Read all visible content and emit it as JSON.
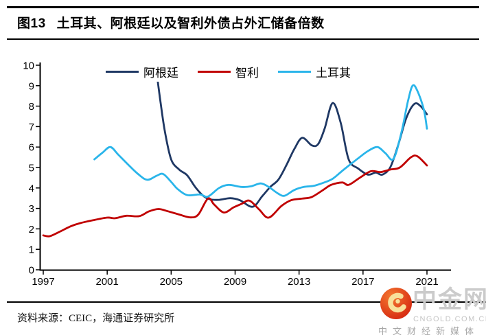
{
  "header": {
    "figure_label": "图13",
    "title": "土耳其、阿根廷以及智利外债占外汇储备倍数"
  },
  "chart_data": {
    "type": "line",
    "title": "土耳其、阿根廷以及智利外债占外汇储备倍数",
    "xlabel": "",
    "ylabel": "",
    "ylim": [
      0,
      10
    ],
    "x_range": [
      1997,
      2021
    ],
    "grid": false,
    "legend_position": "top-center",
    "y_ticks": [
      0,
      1,
      2,
      3,
      4,
      5,
      6,
      7,
      8,
      9,
      10
    ],
    "x_ticks": [
      1997,
      2001,
      2005,
      2009,
      2013,
      2017,
      2021
    ],
    "series": [
      {
        "name": "阿根廷",
        "color": "#1F3864",
        "points": [
          [
            2004.05,
            9.9
          ],
          [
            2004.3,
            8.4
          ],
          [
            2004.6,
            6.8
          ],
          [
            2005.0,
            5.4
          ],
          [
            2005.5,
            4.9
          ],
          [
            2006.0,
            4.62
          ],
          [
            2006.5,
            4.05
          ],
          [
            2007.0,
            3.62
          ],
          [
            2007.4,
            3.45
          ],
          [
            2008.0,
            3.42
          ],
          [
            2008.7,
            3.5
          ],
          [
            2009.3,
            3.4
          ],
          [
            2010.1,
            3.08
          ],
          [
            2010.7,
            3.6
          ],
          [
            2011.2,
            4.05
          ],
          [
            2011.7,
            4.4
          ],
          [
            2012.2,
            5.1
          ],
          [
            2012.7,
            5.9
          ],
          [
            2013.2,
            6.45
          ],
          [
            2013.8,
            6.08
          ],
          [
            2014.2,
            6.15
          ],
          [
            2014.6,
            6.9
          ],
          [
            2015.1,
            8.15
          ],
          [
            2015.6,
            7.2
          ],
          [
            2016.1,
            5.4
          ],
          [
            2016.7,
            4.95
          ],
          [
            2017.3,
            4.65
          ],
          [
            2017.8,
            4.75
          ],
          [
            2018.2,
            4.65
          ],
          [
            2018.7,
            5.0
          ],
          [
            2019.2,
            6.1
          ],
          [
            2019.7,
            7.4
          ],
          [
            2020.2,
            8.1
          ],
          [
            2020.6,
            8.0
          ],
          [
            2021.0,
            7.6
          ]
        ]
      },
      {
        "name": "智利",
        "color": "#C00000",
        "points": [
          [
            1997.0,
            1.68
          ],
          [
            1997.4,
            1.64
          ],
          [
            1998.0,
            1.85
          ],
          [
            1998.7,
            2.12
          ],
          [
            1999.3,
            2.28
          ],
          [
            2000.1,
            2.42
          ],
          [
            2001.0,
            2.55
          ],
          [
            2001.5,
            2.52
          ],
          [
            2002.2,
            2.64
          ],
          [
            2003.0,
            2.62
          ],
          [
            2003.6,
            2.85
          ],
          [
            2004.2,
            2.97
          ],
          [
            2004.8,
            2.86
          ],
          [
            2005.5,
            2.7
          ],
          [
            2006.2,
            2.56
          ],
          [
            2006.7,
            2.7
          ],
          [
            2007.3,
            3.48
          ],
          [
            2007.7,
            3.18
          ],
          [
            2008.3,
            2.8
          ],
          [
            2008.9,
            3.05
          ],
          [
            2009.4,
            3.22
          ],
          [
            2009.9,
            3.38
          ],
          [
            2010.5,
            2.95
          ],
          [
            2011.1,
            2.55
          ],
          [
            2011.9,
            3.12
          ],
          [
            2012.5,
            3.4
          ],
          [
            2013.2,
            3.48
          ],
          [
            2013.8,
            3.56
          ],
          [
            2014.5,
            3.9
          ],
          [
            2015.0,
            4.15
          ],
          [
            2015.7,
            4.27
          ],
          [
            2016.1,
            4.15
          ],
          [
            2016.8,
            4.5
          ],
          [
            2017.5,
            4.82
          ],
          [
            2018.1,
            4.78
          ],
          [
            2018.7,
            4.9
          ],
          [
            2019.3,
            5.0
          ],
          [
            2020.0,
            5.5
          ],
          [
            2020.4,
            5.55
          ],
          [
            2021.0,
            5.1
          ]
        ]
      },
      {
        "name": "土耳其",
        "color": "#2AB5EA",
        "points": [
          [
            2000.2,
            5.4
          ],
          [
            2000.7,
            5.72
          ],
          [
            2001.2,
            6.0
          ],
          [
            2001.7,
            5.62
          ],
          [
            2002.3,
            5.15
          ],
          [
            2002.9,
            4.7
          ],
          [
            2003.5,
            4.4
          ],
          [
            2004.1,
            4.6
          ],
          [
            2004.5,
            4.68
          ],
          [
            2005.0,
            4.3
          ],
          [
            2005.4,
            3.95
          ],
          [
            2006.0,
            3.65
          ],
          [
            2006.8,
            3.68
          ],
          [
            2007.3,
            3.58
          ],
          [
            2008.0,
            4.0
          ],
          [
            2008.6,
            4.15
          ],
          [
            2009.4,
            4.05
          ],
          [
            2010.0,
            4.08
          ],
          [
            2010.6,
            4.22
          ],
          [
            2011.1,
            4.05
          ],
          [
            2011.7,
            3.72
          ],
          [
            2012.1,
            3.62
          ],
          [
            2012.7,
            3.9
          ],
          [
            2013.3,
            4.05
          ],
          [
            2013.9,
            4.1
          ],
          [
            2014.5,
            4.25
          ],
          [
            2015.1,
            4.45
          ],
          [
            2015.8,
            4.9
          ],
          [
            2016.7,
            5.45
          ],
          [
            2017.3,
            5.8
          ],
          [
            2017.9,
            6.0
          ],
          [
            2018.4,
            5.7
          ],
          [
            2018.9,
            5.42
          ],
          [
            2019.4,
            6.7
          ],
          [
            2019.8,
            8.2
          ],
          [
            2020.1,
            9.0
          ],
          [
            2020.4,
            8.75
          ],
          [
            2020.8,
            7.85
          ],
          [
            2021.0,
            6.9
          ]
        ]
      }
    ]
  },
  "footer": {
    "source": "资料来源：CEIC，海通证券研究所"
  },
  "watermark": {
    "brand": "中金网",
    "domain": "CNGOLD.COM.CN",
    "tagline": "中文财经新媒体",
    "logo_color": "#DD2D12"
  }
}
